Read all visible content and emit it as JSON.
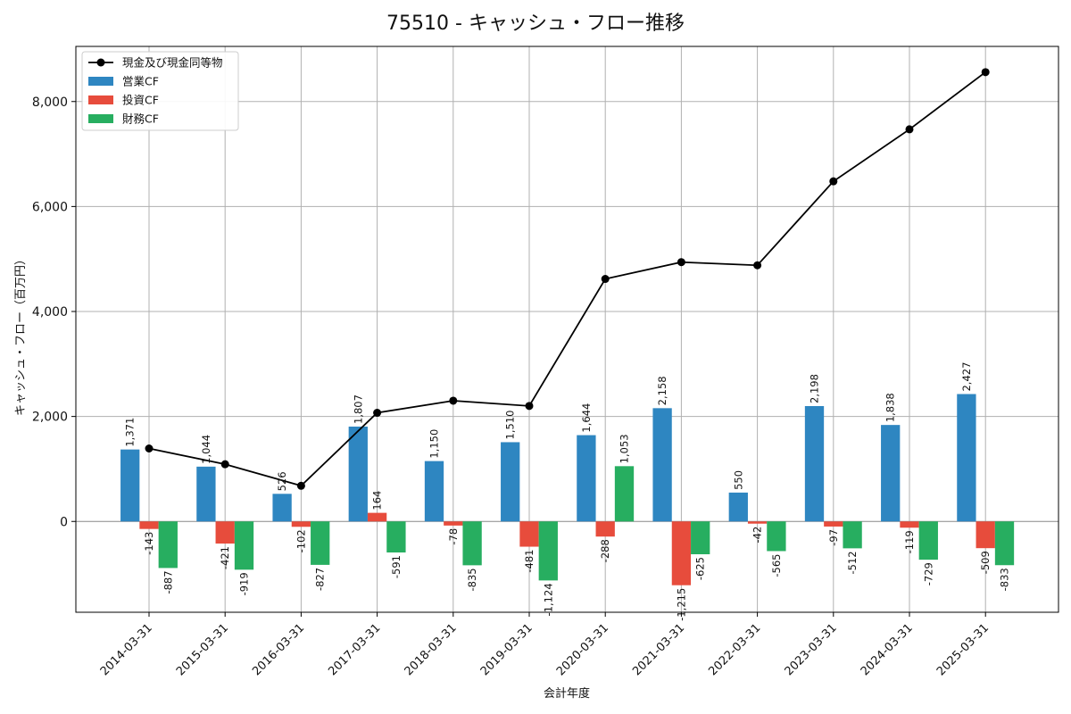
{
  "chart_data": {
    "type": "bar",
    "title": "75510 - キャッシュ・フロー推移",
    "xlabel": "会計年度",
    "ylabel": "キャッシュ・フロー（百万円）",
    "ylim": [
      -1730,
      9050
    ],
    "yticks": [
      0,
      2000,
      4000,
      6000,
      8000
    ],
    "ytick_labels": [
      "0",
      "2,000",
      "4,000",
      "6,000",
      "8,000"
    ],
    "grid": true,
    "legend_position": "top-left",
    "categories": [
      "2014-03-31",
      "2015-03-31",
      "2016-03-31",
      "2017-03-31",
      "2018-03-31",
      "2019-03-31",
      "2020-03-31",
      "2021-03-31",
      "2022-03-31",
      "2023-03-31",
      "2024-03-31",
      "2025-03-31"
    ],
    "series": [
      {
        "name": "営業CF",
        "kind": "bar",
        "color": "#2e86c1",
        "values": [
          1371,
          1044,
          526,
          1807,
          1150,
          1510,
          1644,
          2158,
          550,
          2198,
          1838,
          2427
        ],
        "labels": [
          "1,371",
          "1,044",
          "526",
          "1,807",
          "1,150",
          "1,510",
          "1,644",
          "2,158",
          "550",
          "2,198",
          "1,838",
          "2,427"
        ]
      },
      {
        "name": "投資CF",
        "kind": "bar",
        "color": "#e74c3c",
        "values": [
          -143,
          -421,
          -102,
          164,
          -78,
          -481,
          -288,
          -1215,
          -42,
          -97,
          -119,
          -509
        ],
        "labels": [
          "-143",
          "-421",
          "-102",
          "164",
          "-78",
          "-481",
          "-288",
          "-1,215",
          "-42",
          "-97",
          "-119",
          "-509"
        ]
      },
      {
        "name": "財務CF",
        "kind": "bar",
        "color": "#27ae60",
        "values": [
          -887,
          -919,
          -827,
          -591,
          -835,
          -1124,
          1053,
          -625,
          -565,
          -512,
          -729,
          -833
        ],
        "labels": [
          "-887",
          "-919",
          "-827",
          "-591",
          "-835",
          "-1,124",
          "1,053",
          "-625",
          "-565",
          "-512",
          "-729",
          "-833"
        ]
      },
      {
        "name": "現金及び現金同等物",
        "kind": "line",
        "color": "#000000",
        "values": [
          1390,
          1090,
          680,
          2070,
          2300,
          2200,
          4620,
          4940,
          4880,
          6480,
          7470,
          8560
        ]
      }
    ]
  }
}
